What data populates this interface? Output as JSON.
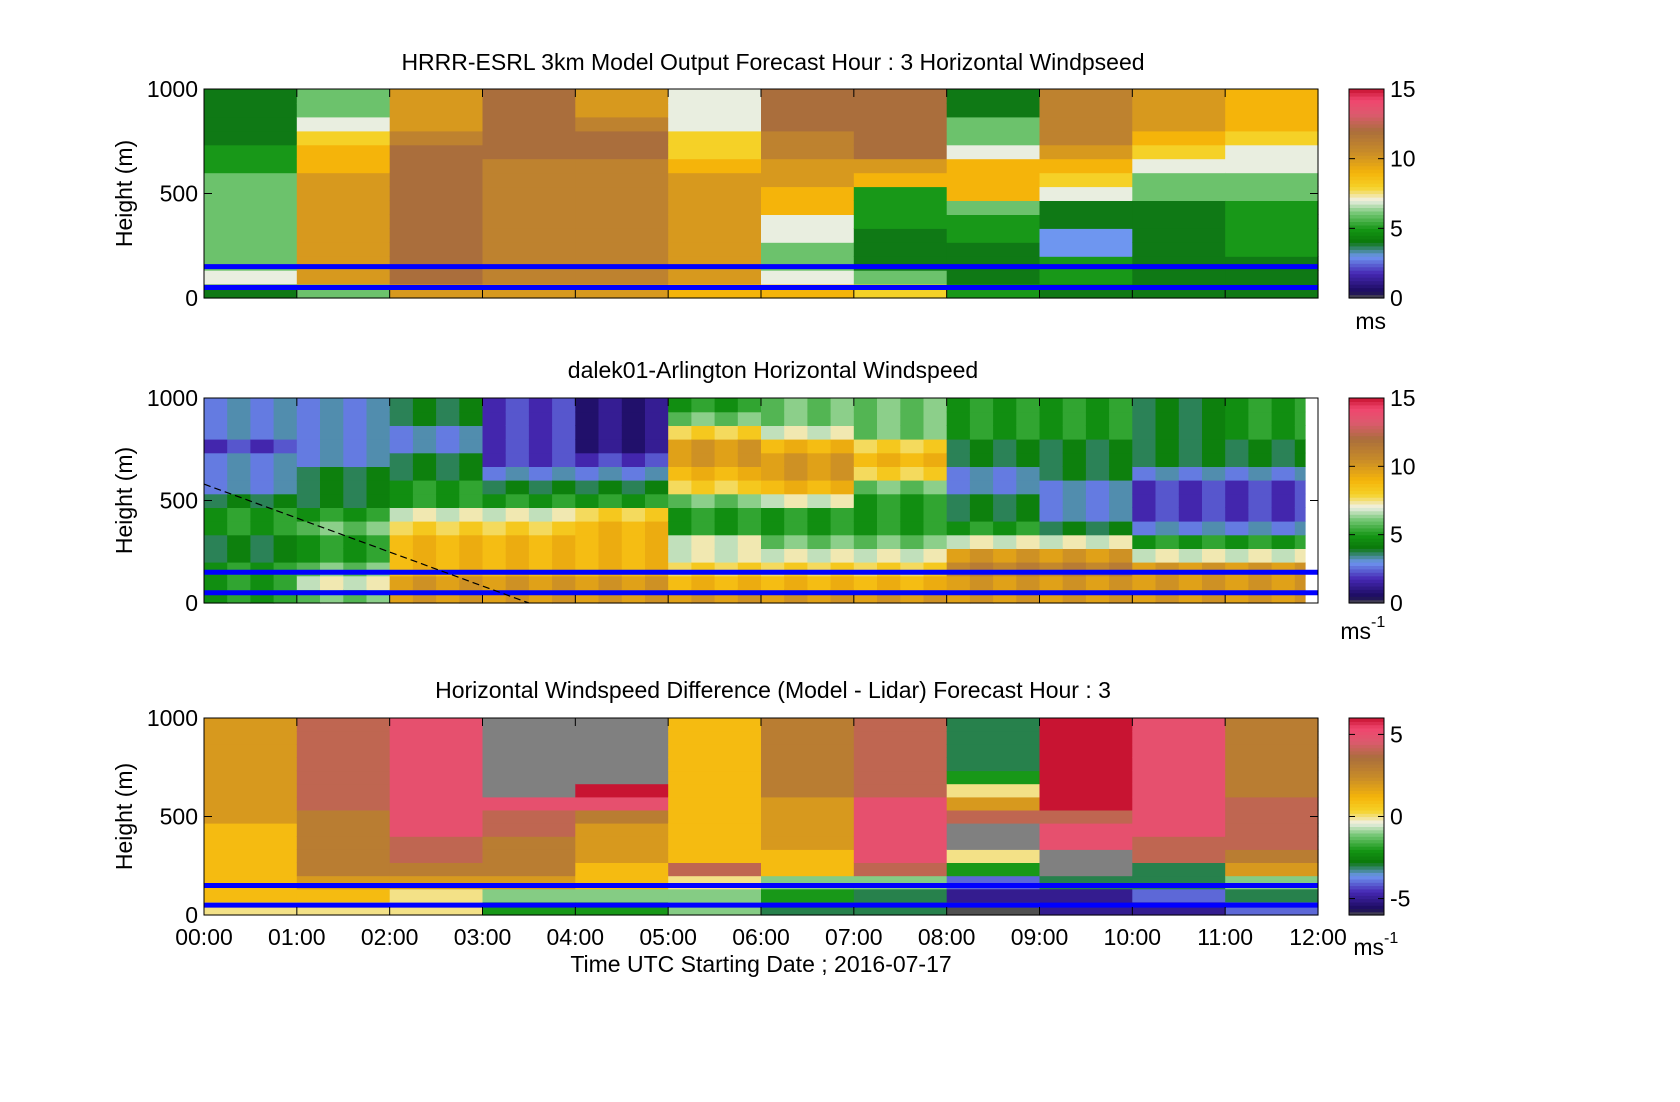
{
  "figure": {
    "x_ticks": [
      "00:00",
      "01:00",
      "02:00",
      "03:00",
      "04:00",
      "05:00",
      "06:00",
      "07:00",
      "08:00",
      "09:00",
      "10:00",
      "11:00",
      "12:00"
    ],
    "x_label": "Time UTC  Starting Date ; 2016-07-17",
    "y_label": "Height (m)",
    "y_ticks": [
      "0",
      "500",
      "1000"
    ]
  },
  "chart_data": [
    {
      "type": "heatmap",
      "title": "HRRR-ESRL 3km Model Output   Forecast Hour : 3 Horizontal Windpseed",
      "ylabel": "Height (m)",
      "ylim": [
        0,
        1000
      ],
      "xlim": [
        "00:00",
        "12:00"
      ],
      "colorbar": {
        "ticks": [
          "0",
          "5",
          "10",
          "15"
        ],
        "range": [
          0,
          15
        ],
        "unit": "ms",
        "unit_sup": ""
      },
      "reference_lines_m": [
        150,
        50
      ],
      "approx_columns_hourly_speed_low_to_high": [
        [
          4,
          7,
          6,
          6,
          6,
          6,
          6,
          6,
          6,
          5,
          5,
          4,
          4,
          4,
          4
        ],
        [
          6,
          10,
          10,
          10,
          10,
          10,
          10,
          10,
          10,
          9,
          9,
          8,
          7,
          6,
          6
        ],
        [
          10,
          12,
          12,
          12,
          12,
          12,
          12,
          12,
          12,
          12,
          12,
          11,
          10,
          10,
          10
        ],
        [
          10,
          11,
          11,
          11,
          11,
          11,
          11,
          11,
          11,
          11,
          12,
          12,
          12,
          12,
          12
        ],
        [
          10,
          11,
          11,
          11,
          11,
          11,
          11,
          11,
          11,
          11,
          12,
          12,
          11,
          10,
          10
        ],
        [
          9,
          10,
          10,
          10,
          10,
          10,
          10,
          10,
          10,
          9,
          8,
          8,
          7,
          7,
          7
        ],
        [
          9,
          7,
          6,
          6,
          7,
          7,
          9,
          9,
          10,
          10,
          11,
          11,
          12,
          12,
          12
        ],
        [
          8,
          6,
          4,
          4,
          4,
          5,
          5,
          5,
          9,
          10,
          12,
          12,
          12,
          12,
          12
        ],
        [
          5,
          4,
          4,
          4,
          5,
          5,
          6,
          9,
          9,
          9,
          7,
          6,
          6,
          4,
          4
        ],
        [
          4,
          5,
          5,
          3,
          3,
          4,
          4,
          7,
          8,
          9,
          10,
          11,
          11,
          11,
          11
        ],
        [
          4,
          4,
          4,
          4,
          4,
          4,
          4,
          6,
          6,
          7,
          8,
          9,
          10,
          10,
          10
        ],
        [
          4,
          4,
          4,
          5,
          5,
          5,
          5,
          6,
          6,
          7,
          7,
          8,
          9,
          9,
          9
        ]
      ]
    },
    {
      "type": "heatmap",
      "title": "dalek01-Arlington  Horizontal Windspeed",
      "ylabel": "Height (m)",
      "ylim": [
        0,
        1000
      ],
      "xlim": [
        "00:00",
        "12:00"
      ],
      "colorbar": {
        "ticks": [
          "0",
          "5",
          "10",
          "15"
        ],
        "range": [
          0,
          15
        ],
        "unit": "ms",
        "unit_sup": "-1"
      },
      "reference_lines_m": [
        150,
        50
      ],
      "dashed_line": {
        "from": [
          "00:00",
          580
        ],
        "to": [
          "03:30",
          0
        ]
      },
      "approx_columns_hourly_speed_low_to_high": [
        [
          5,
          5,
          5,
          4,
          4,
          5,
          5,
          4,
          3,
          3,
          3,
          2,
          3,
          3,
          3
        ],
        [
          6,
          7,
          6,
          5,
          5,
          6,
          5,
          4,
          4,
          4,
          3,
          3,
          3,
          3,
          3
        ],
        [
          10,
          10,
          9,
          9,
          9,
          8,
          7,
          5,
          5,
          4,
          4,
          3,
          3,
          4,
          4
        ],
        [
          10,
          10,
          9,
          9,
          9,
          8,
          7,
          5,
          4,
          3,
          2,
          2,
          2,
          2,
          2
        ],
        [
          10,
          10,
          9,
          9,
          9,
          9,
          8,
          5,
          4,
          3,
          2,
          1,
          1,
          1,
          1
        ],
        [
          10,
          9,
          8,
          7,
          7,
          5,
          5,
          6,
          8,
          9,
          10,
          10,
          8,
          6,
          5
        ],
        [
          10,
          9,
          8,
          7,
          6,
          5,
          5,
          7,
          9,
          10,
          10,
          9,
          7,
          6,
          6
        ],
        [
          10,
          9,
          8,
          7,
          6,
          5,
          5,
          5,
          6,
          8,
          9,
          8,
          6,
          6,
          6
        ],
        [
          10,
          10,
          11,
          10,
          7,
          5,
          4,
          4,
          3,
          3,
          4,
          4,
          5,
          5,
          5
        ],
        [
          10,
          10,
          11,
          10,
          7,
          4,
          3,
          3,
          3,
          4,
          4,
          4,
          5,
          5,
          5
        ],
        [
          10,
          10,
          10,
          7,
          5,
          3,
          2,
          2,
          2,
          3,
          4,
          4,
          4,
          4,
          4
        ],
        [
          10,
          10,
          10,
          7,
          5,
          3,
          2,
          2,
          2,
          3,
          4,
          4,
          5,
          5,
          5
        ]
      ]
    },
    {
      "type": "heatmap",
      "title": "Horizontal Windspeed Difference (Model - Lidar) Forecast Hour : 3",
      "ylabel": "Height (m)",
      "ylim": [
        0,
        1000
      ],
      "xlim": [
        "00:00",
        "12:00"
      ],
      "colorbar": {
        "ticks": [
          "-5",
          "0",
          "5"
        ],
        "range": [
          -6,
          6
        ],
        "unit": "ms",
        "unit_sup": "-1"
      },
      "reference_lines_m": [
        150,
        50
      ],
      "approx_columns_hourly_diff_low_to_high": [
        [
          0,
          1,
          1,
          1,
          1,
          1,
          1,
          2,
          2,
          2,
          2,
          2,
          2,
          2,
          2
        ],
        [
          0,
          1,
          2,
          3,
          3,
          3,
          3,
          3,
          4,
          4,
          4,
          4,
          4,
          4,
          4
        ],
        [
          0,
          0,
          2,
          3,
          4,
          4,
          5,
          5,
          5,
          5,
          5,
          5,
          5,
          5,
          5
        ],
        [
          -2,
          -1,
          2,
          3,
          3,
          3,
          4,
          4,
          5,
          null,
          null,
          null,
          null,
          null,
          null
        ],
        [
          -2,
          -1,
          1,
          1,
          2,
          2,
          2,
          3,
          5,
          6,
          null,
          null,
          null,
          null,
          null
        ],
        [
          -1,
          -1,
          0,
          4,
          1,
          1,
          1,
          1,
          1,
          1,
          1,
          1,
          1,
          1,
          1
        ],
        [
          -3,
          -2,
          -1,
          1,
          1,
          2,
          2,
          2,
          2,
          3,
          3,
          3,
          3,
          3,
          3
        ],
        [
          -3,
          -3,
          -1,
          4,
          5,
          5,
          5,
          5,
          5,
          4,
          4,
          4,
          4,
          4,
          4
        ],
        [
          -6,
          -5,
          -4,
          -2,
          0,
          null,
          null,
          4,
          2,
          0,
          -2,
          -3,
          -3,
          -3,
          -3
        ],
        [
          -5,
          -5,
          -3,
          null,
          null,
          5,
          5,
          4,
          6,
          6,
          6,
          6,
          6,
          6,
          6
        ],
        [
          -5,
          -4,
          -3,
          -3,
          4,
          4,
          5,
          5,
          5,
          5,
          5,
          5,
          5,
          5,
          5
        ],
        [
          -4,
          -3,
          -1,
          2,
          3,
          4,
          4,
          4,
          4,
          3,
          3,
          3,
          3,
          3,
          3
        ]
      ]
    }
  ]
}
